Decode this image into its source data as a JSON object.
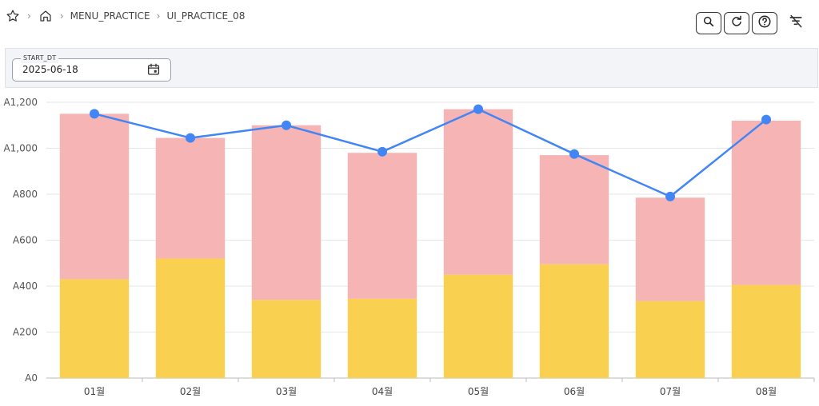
{
  "breadcrumb": {
    "items": [
      "MENU_PRACTICE",
      "UI_PRACTICE_08"
    ]
  },
  "toolbar": {
    "icons": [
      "search-icon",
      "refresh-icon",
      "help-icon",
      "filter-off-icon"
    ]
  },
  "filters": {
    "start_dt_label": "START_DT",
    "start_dt_value": "2025-06-18"
  },
  "colors": {
    "bar_bottom": "#FAD051",
    "bar_top": "#F6B4B4",
    "line": "#4285F4"
  },
  "chart_data": {
    "type": "bar",
    "stacked": true,
    "categories": [
      "01월",
      "02월",
      "03월",
      "04월",
      "05월",
      "06월",
      "07월",
      "08월"
    ],
    "series": [
      {
        "values": [
          430,
          520,
          340,
          345,
          450,
          495,
          335,
          405
        ]
      },
      {
        "values": [
          720,
          525,
          760,
          635,
          720,
          475,
          450,
          715
        ]
      }
    ],
    "line": {
      "values": [
        1150,
        1045,
        1100,
        985,
        1170,
        975,
        790,
        1125
      ]
    },
    "yticks": [
      "A0",
      "A200",
      "A400",
      "A600",
      "A800",
      "A1,000",
      "A1,200"
    ],
    "ylim": [
      0,
      1200
    ],
    "grid": true
  }
}
